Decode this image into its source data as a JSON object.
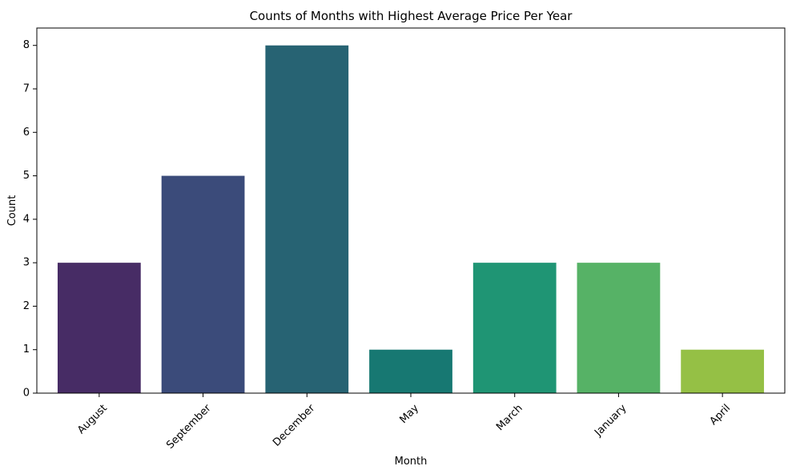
{
  "chart_data": {
    "type": "bar",
    "title": "Counts of Months with Highest Average Price Per Year",
    "xlabel": "Month",
    "ylabel": "Count",
    "categories": [
      "August",
      "September",
      "December",
      "May",
      "March",
      "January",
      "April"
    ],
    "values": [
      3,
      5,
      8,
      1,
      3,
      3,
      1
    ],
    "colors": [
      "#472c65",
      "#3b4b7a",
      "#276373",
      "#177872",
      "#1f9574",
      "#56b266",
      "#95c045"
    ],
    "ylim": [
      0,
      8.4
    ],
    "yticks": [
      0,
      1,
      2,
      3,
      4,
      5,
      6,
      7,
      8
    ],
    "grid": false,
    "legend": "none"
  }
}
